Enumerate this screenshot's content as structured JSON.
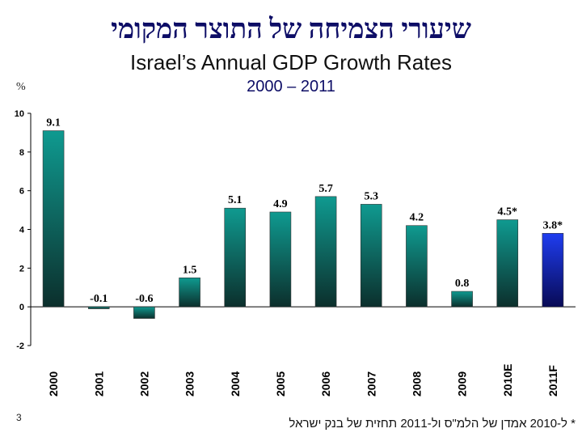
{
  "chart_data": {
    "type": "bar",
    "title_hebrew": "שיעורי הצמיחה של התוצר המקומי",
    "title": "Israel’s Annual GDP Growth Rates",
    "subtitle": "2000 – 2011",
    "ylabel": "%",
    "ylim": [
      -2,
      10
    ],
    "yticks": [
      -2,
      0,
      2,
      4,
      6,
      8,
      10
    ],
    "categories": [
      "2000",
      "2001",
      "2002",
      "2003",
      "2004",
      "2005",
      "2006",
      "2007",
      "2008",
      "2009",
      "2010E",
      "2011F"
    ],
    "values": [
      9.1,
      -0.1,
      -0.6,
      1.5,
      5.1,
      4.9,
      5.7,
      5.3,
      4.2,
      0.8,
      4.5,
      3.8
    ],
    "data_labels": [
      "9.1",
      "-0.1",
      "-0.6",
      "1.5",
      "5.1",
      "4.9",
      "5.7",
      "5.3",
      "4.2",
      "0.8",
      "4.5*",
      "3.8*"
    ],
    "colors": {
      "bar_top": "#0f9a90",
      "bar_bottom": "#0c2f2c",
      "highlight_top": "#1f3df0",
      "highlight_bottom": "#080a55"
    },
    "highlight_index": 11,
    "grid": false
  },
  "footnote": "* ל-2010 אמדן של הלמ\"ס ול-2011 תחזית של בנק ישראל",
  "page_number": "3"
}
